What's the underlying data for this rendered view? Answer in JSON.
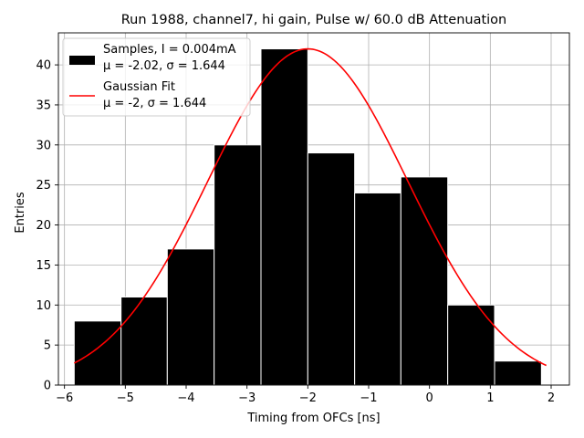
{
  "chart_data": {
    "type": "bar",
    "title": "Run 1988, channel7, hi gain, Pulse w/ 60.0 dB Attenuation",
    "xlabel": "Timing from OFCs [ns]",
    "ylabel": "Entries",
    "xlim": [
      -6.1,
      2.3
    ],
    "ylim": [
      0,
      44
    ],
    "grid": true,
    "x_ticks": [
      -6,
      -5,
      -4,
      -3,
      -2,
      -1,
      0,
      1,
      2
    ],
    "y_ticks": [
      0,
      5,
      10,
      15,
      20,
      25,
      30,
      35,
      40
    ],
    "histogram": {
      "name": "Samples, I = 0.004mA",
      "stats_label": "μ = -2.02, σ = 1.644",
      "color": "#000000",
      "edge_color": "#ffffff",
      "bin_edges": [
        -5.84,
        -5.07,
        -4.31,
        -3.54,
        -2.77,
        -2.0,
        -1.23,
        -0.47,
        0.3,
        1.07,
        1.84
      ],
      "values": [
        8,
        11,
        17,
        30,
        42,
        29,
        24,
        26,
        10,
        3
      ]
    },
    "fit": {
      "name": "Gaussian Fit",
      "stats_label": "μ = -2, σ = 1.644",
      "color": "#ff0000",
      "mu": -2.0,
      "sigma": 1.644,
      "amplitude": 42.0,
      "x_range": [
        -5.84,
        1.92
      ]
    },
    "legend_position": "top-left"
  }
}
